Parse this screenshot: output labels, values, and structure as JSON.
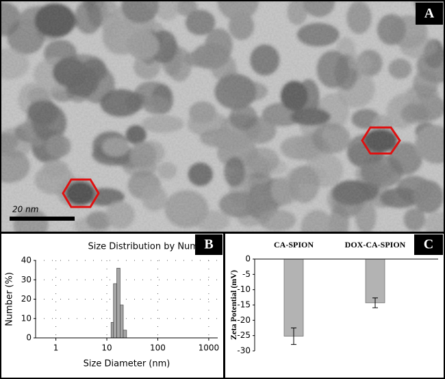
{
  "image": {
    "panel_label": "A",
    "scale_bar_label": "20 nm"
  },
  "chart_data": [
    {
      "type": "histogram",
      "panel_label": "B",
      "title": "Size Distribution by Number",
      "x_label": "Size Diameter (nm)",
      "y_label": "Number (%)",
      "bins": [
        12.1,
        13.5,
        15.7,
        18.2,
        21.0,
        24.4
      ],
      "counts": [
        8,
        28,
        36,
        17,
        4
      ],
      "color": "#a6a6a6",
      "xscale": "log",
      "xlim": [
        0.4,
        1500
      ],
      "xticks": [
        1,
        10,
        100,
        1000
      ],
      "ylim": [
        0,
        40
      ],
      "yticks": [
        0,
        10,
        20,
        30,
        40
      ],
      "grid": true
    },
    {
      "type": "bar",
      "panel_label": "C",
      "y_label": "Zeta Potential (mV)",
      "categories": [
        "CA-SPION",
        "DOX-CA-SPION"
      ],
      "values": [
        -25.2,
        -14.3
      ],
      "errors": [
        2.7,
        1.6
      ],
      "color": "#b3b3b3",
      "ylim": [
        -30,
        0
      ],
      "yticks": [
        0,
        -5,
        -10,
        -15,
        -20,
        -25,
        -30
      ]
    }
  ]
}
